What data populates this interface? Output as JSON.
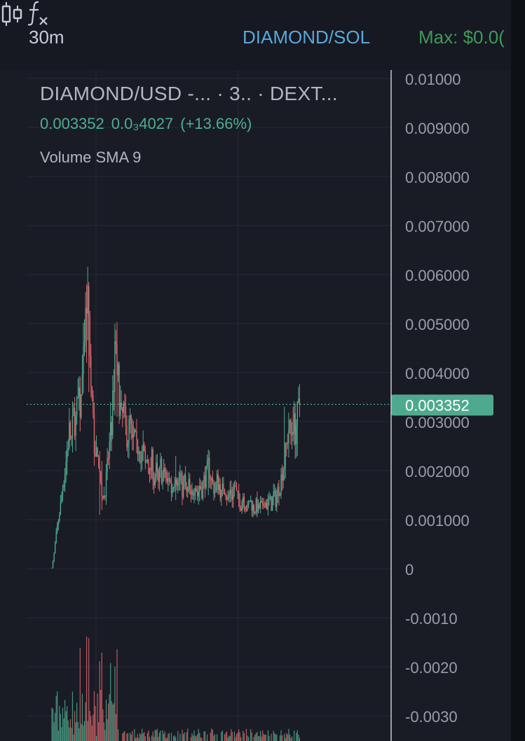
{
  "toolbar": {
    "interval": "30m",
    "chart_type_icon": "candlestick-icon",
    "indicators_icon": "fx-icon",
    "pair": "DIAMOND/SOL",
    "max_label": "Max: $0.0("
  },
  "legend": {
    "title": "DIAMOND/USD -...  · 3.. · DEXT...",
    "price": "0.003352",
    "change": "0.0₃4027",
    "change_pct": "(+13.66%)",
    "study": "Volume SMA 9"
  },
  "colors": {
    "up": "#4fa98e",
    "down": "#d9656a",
    "last_price_tag": "#4fa98e",
    "grid": "#262936",
    "axis_text": "#9a9da8",
    "background": "#191b25"
  },
  "chart_data": {
    "type": "candlestick",
    "y_axis_ticks": [
      "0.01000",
      "0.009000",
      "0.008000",
      "0.007000",
      "0.006000",
      "0.005000",
      "0.004000",
      "0.003000",
      "0.002000",
      "0.001000",
      "0",
      "-0.0010",
      "-0.0020",
      "-0.0030"
    ],
    "ylim": [
      -0.0033,
      0.0102
    ],
    "last_price": 0.003352,
    "last_price_label": "0.003352",
    "price_path": [
      [
        0,
        2e-05
      ],
      [
        2,
        0.0003
      ],
      [
        4,
        0.0007
      ],
      [
        6,
        0.001
      ],
      [
        8,
        0.0013
      ],
      [
        10,
        0.0017
      ],
      [
        12,
        0.002
      ],
      [
        14,
        0.0024
      ],
      [
        16,
        0.0028
      ],
      [
        18,
        0.0026
      ],
      [
        20,
        0.0031
      ],
      [
        22,
        0.003
      ],
      [
        24,
        0.0034
      ],
      [
        26,
        0.0033
      ],
      [
        28,
        0.0038
      ],
      [
        30,
        0.0044
      ],
      [
        32,
        0.0054
      ],
      [
        34,
        0.005
      ],
      [
        36,
        0.0037
      ],
      [
        38,
        0.003
      ],
      [
        40,
        0.0022
      ],
      [
        42,
        0.0025
      ],
      [
        44,
        0.002
      ],
      [
        46,
        0.0016
      ],
      [
        48,
        0.0015
      ],
      [
        50,
        0.0018
      ],
      [
        52,
        0.0023
      ],
      [
        54,
        0.0027
      ],
      [
        56,
        0.0033
      ],
      [
        58,
        0.0046
      ],
      [
        60,
        0.0042
      ],
      [
        62,
        0.0035
      ],
      [
        64,
        0.003
      ],
      [
        66,
        0.0032
      ],
      [
        68,
        0.0028
      ],
      [
        70,
        0.0027
      ],
      [
        72,
        0.003
      ],
      [
        74,
        0.0025
      ],
      [
        76,
        0.0027
      ],
      [
        78,
        0.0024
      ],
      [
        80,
        0.0026
      ],
      [
        82,
        0.0022
      ],
      [
        84,
        0.0024
      ],
      [
        86,
        0.0021
      ],
      [
        88,
        0.0023
      ],
      [
        90,
        0.0019
      ],
      [
        92,
        0.0022
      ],
      [
        94,
        0.0018
      ],
      [
        96,
        0.002
      ],
      [
        98,
        0.0017
      ],
      [
        100,
        0.0021
      ],
      [
        102,
        0.0018
      ],
      [
        104,
        0.002
      ],
      [
        106,
        0.0017
      ],
      [
        108,
        0.0019
      ],
      [
        110,
        0.0016
      ],
      [
        112,
        0.0018
      ],
      [
        114,
        0.002
      ],
      [
        116,
        0.0017
      ],
      [
        118,
        0.0019
      ],
      [
        120,
        0.0016
      ],
      [
        122,
        0.0018
      ],
      [
        124,
        0.0015
      ],
      [
        126,
        0.0017
      ],
      [
        128,
        0.0014
      ],
      [
        130,
        0.0016
      ],
      [
        132,
        0.0018
      ],
      [
        134,
        0.0015
      ],
      [
        136,
        0.0017
      ],
      [
        138,
        0.0016
      ],
      [
        140,
        0.0018
      ],
      [
        142,
        0.0019
      ],
      [
        144,
        0.0021
      ],
      [
        146,
        0.0019
      ],
      [
        148,
        0.0017
      ],
      [
        150,
        0.0016
      ],
      [
        152,
        0.0018
      ],
      [
        154,
        0.0017
      ],
      [
        156,
        0.0015
      ],
      [
        158,
        0.0017
      ],
      [
        160,
        0.0016
      ],
      [
        162,
        0.0014
      ],
      [
        164,
        0.0016
      ],
      [
        166,
        0.0015
      ],
      [
        168,
        0.0017
      ],
      [
        170,
        0.0015
      ],
      [
        172,
        0.0014
      ],
      [
        174,
        0.0013
      ],
      [
        176,
        0.0015
      ],
      [
        178,
        0.0013
      ],
      [
        180,
        0.0012
      ],
      [
        182,
        0.0014
      ],
      [
        184,
        0.0013
      ],
      [
        186,
        0.0012
      ],
      [
        188,
        0.0013
      ],
      [
        190,
        0.0012
      ],
      [
        192,
        0.0013
      ],
      [
        194,
        0.0012
      ],
      [
        196,
        0.0014
      ],
      [
        198,
        0.0013
      ],
      [
        200,
        0.0014
      ],
      [
        202,
        0.0013
      ],
      [
        204,
        0.0015
      ],
      [
        206,
        0.0014
      ],
      [
        208,
        0.0016
      ],
      [
        210,
        0.0017
      ],
      [
        212,
        0.002
      ],
      [
        214,
        0.0022
      ],
      [
        216,
        0.0025
      ],
      [
        218,
        0.0029
      ],
      [
        220,
        0.0027
      ],
      [
        222,
        0.003
      ],
      [
        224,
        0.0028
      ],
      [
        226,
        0.0031
      ],
      [
        228,
        0.003352
      ]
    ],
    "spikes": [
      [
        32,
        0.0058,
        0.0042
      ],
      [
        34,
        0.0057,
        0.0036
      ],
      [
        58,
        0.005,
        0.0034
      ],
      [
        60,
        0.0049,
        0.0031
      ],
      [
        54,
        0.0034,
        0.0024
      ],
      [
        26,
        0.0036,
        0.0028
      ],
      [
        44,
        0.0024,
        0.0011
      ],
      [
        46,
        0.0022,
        0.0012
      ],
      [
        144,
        0.0024,
        0.0015
      ],
      [
        114,
        0.0023,
        0.0014
      ],
      [
        214,
        0.0033,
        0.0018
      ],
      [
        222,
        0.0033,
        0.0026
      ],
      [
        226,
        0.0034,
        0.0023
      ]
    ]
  }
}
